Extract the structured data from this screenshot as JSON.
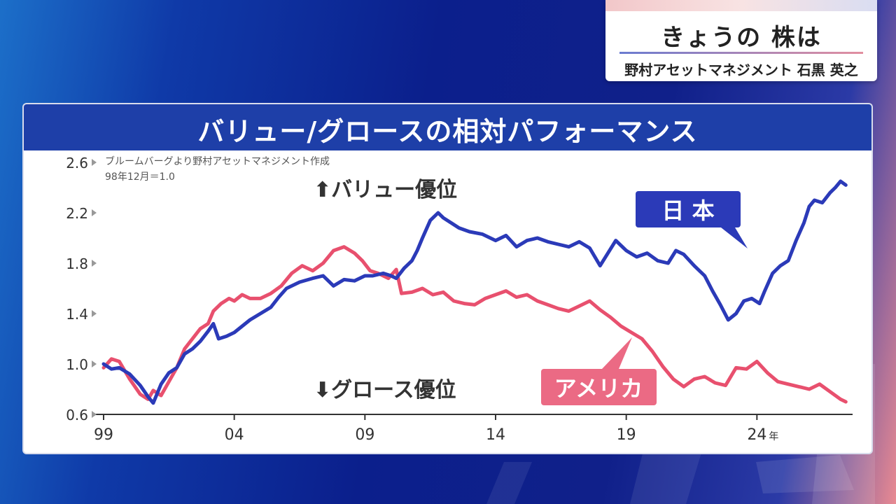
{
  "badge": {
    "title": "きょうの 株は",
    "subtitle": "野村アセットマネジメント 石黒 英之"
  },
  "panel": {
    "title": "バリュー/グロースの相対パフォーマンス"
  },
  "colors": {
    "japan": "#2b3ab8",
    "usa": "#e8506e",
    "header": "#1e3fa8"
  },
  "chart_data": {
    "type": "line",
    "title": "バリュー/グロースの相対パフォーマンス",
    "source_note": "ブルームバーグより野村アセットマネジメント作成",
    "base_note": "98年12月＝1.0",
    "annotation_up": "⬆バリュー優位",
    "annotation_down": "⬇グロース優位",
    "xlim": [
      1999,
      2026.3
    ],
    "ylim": [
      0.6,
      2.6
    ],
    "x_ticks": [
      {
        "value": 1999,
        "label": "99"
      },
      {
        "value": 2004,
        "label": "04"
      },
      {
        "value": 2009,
        "label": "09"
      },
      {
        "value": 2014,
        "label": "14"
      },
      {
        "value": 2019,
        "label": "19"
      },
      {
        "value": 2024,
        "label": "24"
      }
    ],
    "x_unit": "年",
    "y_ticks": [
      {
        "value": 0.6,
        "label": "0.6"
      },
      {
        "value": 1.0,
        "label": "1.0"
      },
      {
        "value": 1.4,
        "label": "1.4"
      },
      {
        "value": 1.8,
        "label": "1.8"
      },
      {
        "value": 2.2,
        "label": "2.2"
      },
      {
        "value": 2.6,
        "label": "2.6"
      }
    ],
    "series": [
      {
        "name": "日 本",
        "color": "#2b3ab8",
        "points": [
          [
            1999.0,
            1.0
          ],
          [
            1999.3,
            0.96
          ],
          [
            1999.6,
            0.97
          ],
          [
            2000.0,
            0.92
          ],
          [
            2000.4,
            0.83
          ],
          [
            2000.7,
            0.74
          ],
          [
            2000.9,
            0.69
          ],
          [
            2001.2,
            0.84
          ],
          [
            2001.5,
            0.93
          ],
          [
            2001.8,
            0.97
          ],
          [
            2002.1,
            1.08
          ],
          [
            2002.4,
            1.12
          ],
          [
            2002.7,
            1.18
          ],
          [
            2003.0,
            1.26
          ],
          [
            2003.2,
            1.32
          ],
          [
            2003.4,
            1.2
          ],
          [
            2003.7,
            1.22
          ],
          [
            2004.0,
            1.25
          ],
          [
            2004.3,
            1.3
          ],
          [
            2004.6,
            1.35
          ],
          [
            2005.0,
            1.4
          ],
          [
            2005.4,
            1.45
          ],
          [
            2005.7,
            1.53
          ],
          [
            2006.0,
            1.6
          ],
          [
            2006.5,
            1.65
          ],
          [
            2007.0,
            1.68
          ],
          [
            2007.4,
            1.7
          ],
          [
            2007.8,
            1.62
          ],
          [
            2008.2,
            1.67
          ],
          [
            2008.6,
            1.66
          ],
          [
            2009.0,
            1.7
          ],
          [
            2009.3,
            1.7
          ],
          [
            2009.7,
            1.72
          ],
          [
            2010.0,
            1.7
          ],
          [
            2010.2,
            1.68
          ],
          [
            2010.5,
            1.76
          ],
          [
            2010.8,
            1.82
          ],
          [
            2011.0,
            1.9
          ],
          [
            2011.2,
            2.0
          ],
          [
            2011.5,
            2.14
          ],
          [
            2011.8,
            2.2
          ],
          [
            2012.0,
            2.16
          ],
          [
            2012.3,
            2.12
          ],
          [
            2012.6,
            2.08
          ],
          [
            2013.0,
            2.05
          ],
          [
            2013.5,
            2.03
          ],
          [
            2014.0,
            1.98
          ],
          [
            2014.4,
            2.02
          ],
          [
            2014.8,
            1.93
          ],
          [
            2015.2,
            1.98
          ],
          [
            2015.6,
            2.0
          ],
          [
            2016.0,
            1.97
          ],
          [
            2016.4,
            1.95
          ],
          [
            2016.8,
            1.93
          ],
          [
            2017.2,
            1.97
          ],
          [
            2017.6,
            1.92
          ],
          [
            2018.0,
            1.78
          ],
          [
            2018.3,
            1.88
          ],
          [
            2018.6,
            1.98
          ],
          [
            2019.0,
            1.9
          ],
          [
            2019.4,
            1.85
          ],
          [
            2019.8,
            1.88
          ],
          [
            2020.2,
            1.82
          ],
          [
            2020.6,
            1.8
          ],
          [
            2020.9,
            1.9
          ],
          [
            2021.2,
            1.87
          ],
          [
            2021.6,
            1.78
          ],
          [
            2022.0,
            1.7
          ],
          [
            2022.3,
            1.58
          ],
          [
            2022.6,
            1.47
          ],
          [
            2022.9,
            1.35
          ],
          [
            2023.2,
            1.4
          ],
          [
            2023.5,
            1.5
          ],
          [
            2023.8,
            1.52
          ],
          [
            2024.1,
            1.48
          ],
          [
            2024.3,
            1.58
          ],
          [
            2024.6,
            1.72
          ],
          [
            2024.9,
            1.78
          ],
          [
            2025.2,
            1.82
          ],
          [
            2025.5,
            1.98
          ],
          [
            2025.8,
            2.12
          ],
          [
            2026.0,
            2.25
          ],
          [
            2026.2,
            2.3
          ],
          [
            2026.5,
            2.28
          ],
          [
            2026.8,
            2.36
          ],
          [
            2027.0,
            2.4
          ],
          [
            2027.2,
            2.45
          ],
          [
            2027.4,
            2.42
          ]
        ]
      },
      {
        "name": "アメリカ",
        "color": "#e8506e",
        "points": [
          [
            1999.0,
            0.97
          ],
          [
            1999.3,
            1.04
          ],
          [
            1999.6,
            1.02
          ],
          [
            2000.0,
            0.88
          ],
          [
            2000.4,
            0.76
          ],
          [
            2000.7,
            0.72
          ],
          [
            2000.9,
            0.79
          ],
          [
            2001.2,
            0.75
          ],
          [
            2001.5,
            0.86
          ],
          [
            2001.8,
            0.97
          ],
          [
            2002.1,
            1.12
          ],
          [
            2002.4,
            1.2
          ],
          [
            2002.7,
            1.28
          ],
          [
            2003.0,
            1.32
          ],
          [
            2003.2,
            1.42
          ],
          [
            2003.5,
            1.48
          ],
          [
            2003.8,
            1.52
          ],
          [
            2004.0,
            1.5
          ],
          [
            2004.3,
            1.55
          ],
          [
            2004.6,
            1.52
          ],
          [
            2005.0,
            1.52
          ],
          [
            2005.4,
            1.56
          ],
          [
            2005.8,
            1.62
          ],
          [
            2006.2,
            1.72
          ],
          [
            2006.6,
            1.78
          ],
          [
            2007.0,
            1.74
          ],
          [
            2007.4,
            1.8
          ],
          [
            2007.8,
            1.9
          ],
          [
            2008.2,
            1.93
          ],
          [
            2008.6,
            1.88
          ],
          [
            2008.9,
            1.82
          ],
          [
            2009.2,
            1.74
          ],
          [
            2009.5,
            1.72
          ],
          [
            2009.9,
            1.68
          ],
          [
            2010.2,
            1.75
          ],
          [
            2010.4,
            1.56
          ],
          [
            2010.8,
            1.57
          ],
          [
            2011.2,
            1.6
          ],
          [
            2011.6,
            1.55
          ],
          [
            2012.0,
            1.57
          ],
          [
            2012.4,
            1.5
          ],
          [
            2012.8,
            1.48
          ],
          [
            2013.2,
            1.47
          ],
          [
            2013.6,
            1.52
          ],
          [
            2014.0,
            1.55
          ],
          [
            2014.4,
            1.58
          ],
          [
            2014.8,
            1.53
          ],
          [
            2015.2,
            1.55
          ],
          [
            2015.6,
            1.5
          ],
          [
            2016.0,
            1.47
          ],
          [
            2016.4,
            1.44
          ],
          [
            2016.8,
            1.42
          ],
          [
            2017.2,
            1.46
          ],
          [
            2017.6,
            1.5
          ],
          [
            2018.0,
            1.43
          ],
          [
            2018.4,
            1.37
          ],
          [
            2018.8,
            1.3
          ],
          [
            2019.2,
            1.25
          ],
          [
            2019.6,
            1.2
          ],
          [
            2020.0,
            1.1
          ],
          [
            2020.4,
            0.98
          ],
          [
            2020.8,
            0.88
          ],
          [
            2021.2,
            0.82
          ],
          [
            2021.6,
            0.88
          ],
          [
            2022.0,
            0.9
          ],
          [
            2022.4,
            0.85
          ],
          [
            2022.8,
            0.83
          ],
          [
            2023.2,
            0.97
          ],
          [
            2023.6,
            0.96
          ],
          [
            2024.0,
            1.02
          ],
          [
            2024.4,
            0.93
          ],
          [
            2024.8,
            0.86
          ],
          [
            2025.2,
            0.84
          ],
          [
            2025.6,
            0.82
          ],
          [
            2026.0,
            0.8
          ],
          [
            2026.4,
            0.84
          ],
          [
            2026.8,
            0.78
          ],
          [
            2027.2,
            0.72
          ],
          [
            2027.4,
            0.7
          ]
        ]
      }
    ],
    "labels": [
      {
        "text": "日 本",
        "series": 0
      },
      {
        "text": "アメリカ",
        "series": 1
      }
    ]
  }
}
